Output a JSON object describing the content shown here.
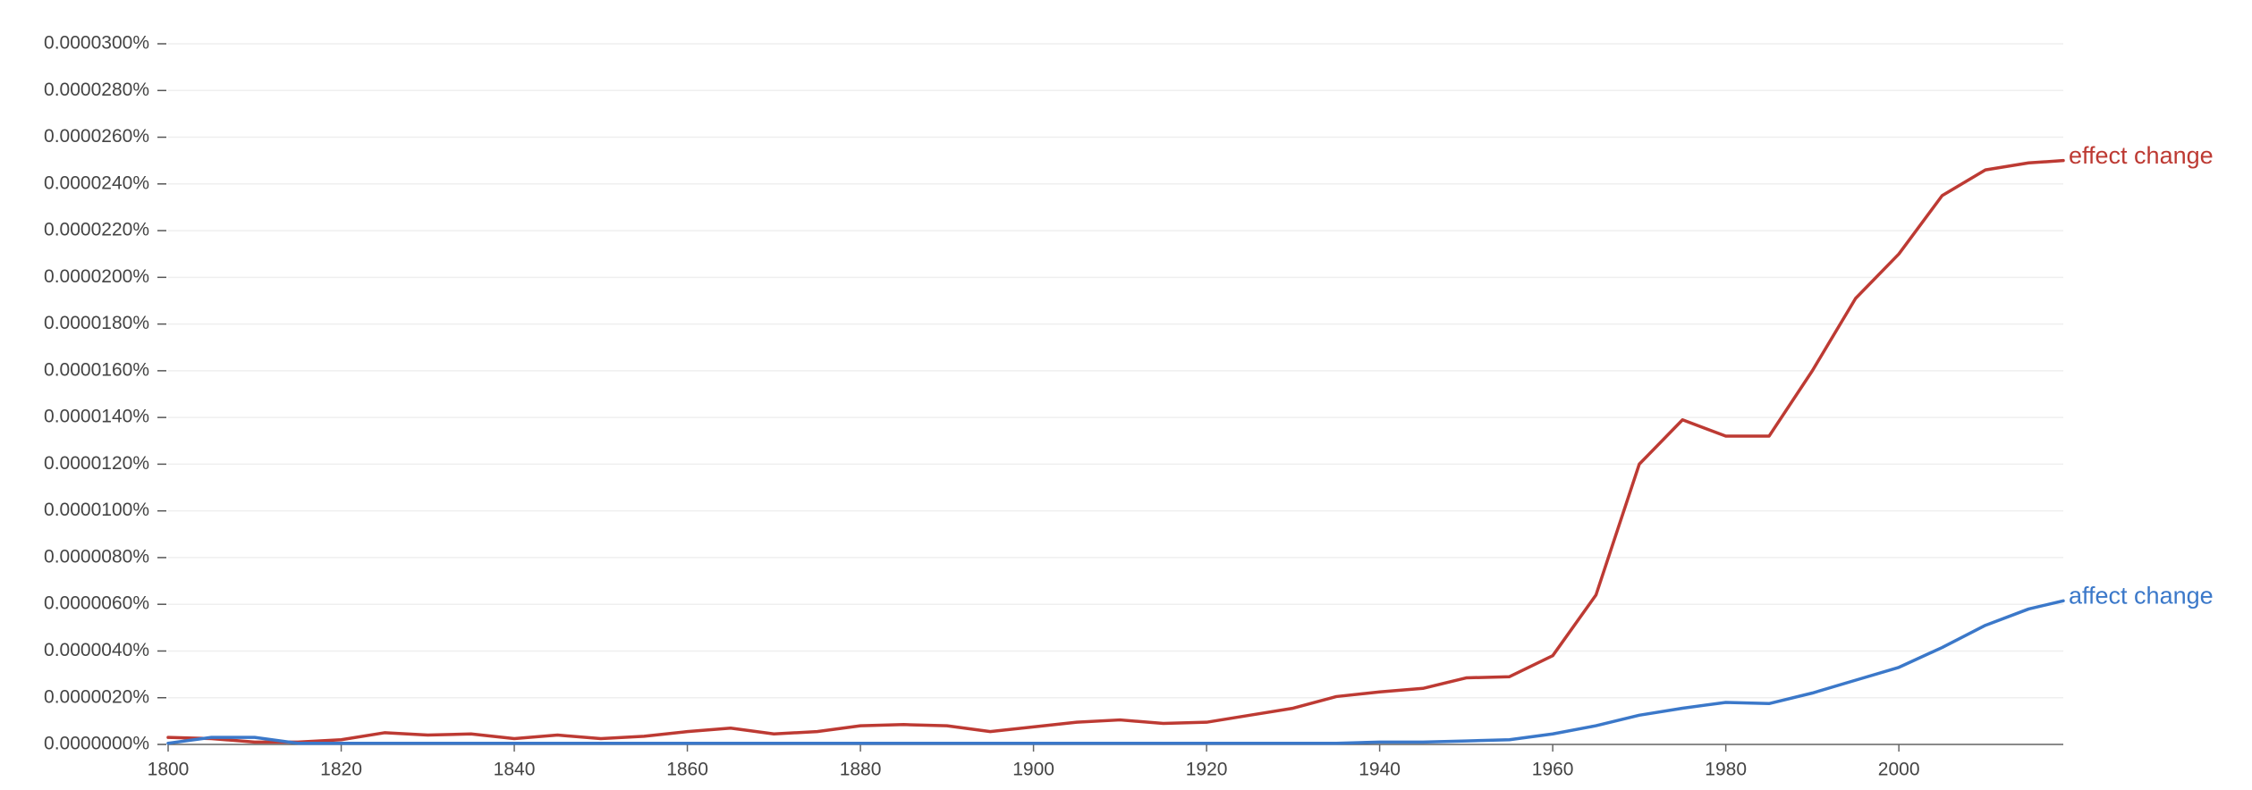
{
  "chart_data": {
    "type": "line",
    "x": [
      1800,
      1805,
      1810,
      1815,
      1820,
      1825,
      1830,
      1835,
      1840,
      1845,
      1850,
      1855,
      1860,
      1865,
      1870,
      1875,
      1880,
      1885,
      1890,
      1895,
      1900,
      1905,
      1910,
      1915,
      1920,
      1925,
      1930,
      1935,
      1940,
      1945,
      1950,
      1955,
      1960,
      1965,
      1970,
      1975,
      1980,
      1985,
      1990,
      1995,
      2000,
      2005,
      2010,
      2015,
      2019
    ],
    "series": [
      {
        "name": "effect change",
        "color": "#bd3a33",
        "values": [
          3e-07,
          2.5e-07,
          1e-07,
          1e-07,
          2e-07,
          5e-07,
          4e-07,
          4.5e-07,
          2.5e-07,
          4e-07,
          2.5e-07,
          3.5e-07,
          5.5e-07,
          7e-07,
          4.5e-07,
          5.5e-07,
          8e-07,
          8.5e-07,
          8e-07,
          5.5e-07,
          7.5e-07,
          9.5e-07,
          1.05e-06,
          9e-07,
          9.5e-07,
          1.25e-06,
          1.55e-06,
          2.05e-06,
          2.25e-06,
          2.4e-06,
          2.85e-06,
          2.9e-06,
          3.8e-06,
          6.4e-06,
          1.2e-05,
          1.39e-05,
          1.32e-05,
          1.32e-05,
          1.6e-05,
          1.91e-05,
          2.1e-05,
          2.35e-05,
          2.46e-05,
          2.49e-05,
          2.5e-05
        ]
      },
      {
        "name": "affect change",
        "color": "#3b78c9",
        "values": [
          5e-08,
          3e-07,
          3e-07,
          5e-08,
          5e-08,
          5e-08,
          5e-08,
          5e-08,
          5e-08,
          5e-08,
          5e-08,
          5e-08,
          5e-08,
          5e-08,
          5e-08,
          5e-08,
          5e-08,
          5e-08,
          5e-08,
          5e-08,
          5e-08,
          5e-08,
          5e-08,
          5e-08,
          5e-08,
          5e-08,
          5e-08,
          5e-08,
          1e-07,
          1e-07,
          1.5e-07,
          2e-07,
          4.5e-07,
          8e-07,
          1.25e-06,
          1.55e-06,
          1.8e-06,
          1.75e-06,
          2.2e-06,
          2.75e-06,
          3.3e-06,
          4.15e-06,
          5.1e-06,
          5.8e-06,
          6.15e-06
        ]
      }
    ],
    "xlim": [
      1800,
      2019
    ],
    "xticks": [
      1800,
      1820,
      1840,
      1860,
      1880,
      1900,
      1920,
      1940,
      1960,
      1980,
      2000
    ],
    "ylim": [
      0,
      3e-05
    ],
    "yticks": [
      {
        "value": 0,
        "label": "0.0000000%"
      },
      {
        "value": 2e-06,
        "label": "0.0000020%"
      },
      {
        "value": 4e-06,
        "label": "0.0000040%"
      },
      {
        "value": 6e-06,
        "label": "0.0000060%"
      },
      {
        "value": 8e-06,
        "label": "0.0000080%"
      },
      {
        "value": 1e-05,
        "label": "0.0000100%"
      },
      {
        "value": 1.2e-05,
        "label": "0.0000120%"
      },
      {
        "value": 1.4e-05,
        "label": "0.0000140%"
      },
      {
        "value": 1.6e-05,
        "label": "0.0000160%"
      },
      {
        "value": 1.8e-05,
        "label": "0.0000180%"
      },
      {
        "value": 2e-05,
        "label": "0.0000200%"
      },
      {
        "value": 2.2e-05,
        "label": "0.0000220%"
      },
      {
        "value": 2.4e-05,
        "label": "0.0000240%"
      },
      {
        "value": 2.6e-05,
        "label": "0.0000260%"
      },
      {
        "value": 2.8e-05,
        "label": "0.0000280%"
      },
      {
        "value": 3e-05,
        "label": "0.0000300%"
      }
    ],
    "grid": true
  }
}
